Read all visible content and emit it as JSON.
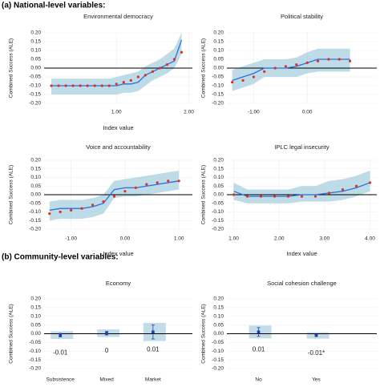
{
  "section_titles": [
    "(a) National-level variables:",
    "(b) Community-level variables:"
  ],
  "chart_data": [
    {
      "type": "line",
      "title": "Environmental democracy",
      "xlabel": "Index value",
      "ylabel": "Combined Success (ALE)",
      "grid": true,
      "xlim": [
        0,
        2.05
      ],
      "xticks": [
        {
          "value": 1,
          "label": "1.00"
        },
        {
          "value": 2,
          "label": "2.00"
        }
      ],
      "ylim": [
        -0.2,
        0.2
      ],
      "yticks": [
        {
          "value": 0.2,
          "label": "0.20"
        },
        0.15,
        {
          "value": 0.1,
          "label": "0.10"
        },
        0.05,
        {
          "value": 0,
          "label": "0.00"
        },
        -0.05,
        {
          "value": -0.1,
          "label": "-0.10"
        },
        -0.15,
        {
          "value": -0.2,
          "label": "-0.20"
        }
      ],
      "x": [
        0.1,
        0.2,
        0.3,
        0.4,
        0.5,
        0.6,
        0.7,
        0.8,
        0.9,
        1.0,
        1.1,
        1.2,
        1.3,
        1.4,
        1.5,
        1.6,
        1.7,
        1.8,
        1.9
      ],
      "series": [
        {
          "style": "band",
          "color": "#a8cfe0",
          "values": [
            -0.06,
            -0.06,
            -0.06,
            -0.06,
            -0.06,
            -0.06,
            -0.06,
            -0.06,
            -0.06,
            -0.05,
            -0.04,
            -0.03,
            -0.02,
            0.01,
            0.03,
            0.05,
            0.08,
            0.11,
            0.2
          ],
          "low": [
            -0.15,
            -0.15,
            -0.15,
            -0.15,
            -0.15,
            -0.15,
            -0.15,
            -0.15,
            -0.15,
            -0.15,
            -0.14,
            -0.14,
            -0.13,
            -0.1,
            -0.07,
            -0.05,
            -0.03,
            0.0,
            0.08
          ]
        },
        {
          "style": "line",
          "color": "#2f6fd6",
          "values": [
            -0.1,
            -0.1,
            -0.1,
            -0.1,
            -0.1,
            -0.1,
            -0.1,
            -0.1,
            -0.1,
            -0.1,
            -0.09,
            -0.09,
            -0.08,
            -0.04,
            -0.02,
            0.0,
            0.02,
            0.04,
            0.16
          ]
        },
        {
          "style": "points",
          "color": "#e0301e",
          "values": [
            -0.1,
            -0.1,
            -0.1,
            -0.1,
            -0.1,
            -0.1,
            -0.1,
            -0.1,
            -0.1,
            -0.09,
            -0.08,
            -0.07,
            -0.05,
            -0.04,
            -0.02,
            0.0,
            0.02,
            0.05,
            0.09
          ]
        }
      ]
    },
    {
      "type": "line",
      "title": "Political stability",
      "ylabel": "Combined Success (ALE)",
      "grid": true,
      "xlim": [
        -1.5,
        1.3
      ],
      "xticks": [
        {
          "value": -1,
          "label": "-1.00"
        },
        {
          "value": 0,
          "label": "0.00"
        }
      ],
      "ylim": [
        -0.2,
        0.2
      ],
      "yticks": [
        {
          "value": 0.2,
          "label": "0.20"
        },
        0.15,
        {
          "value": 0.1,
          "label": "0.10"
        },
        0.05,
        {
          "value": 0,
          "label": "0.00"
        },
        -0.05,
        {
          "value": -0.1,
          "label": "-0.10"
        },
        -0.15,
        {
          "value": -0.2,
          "label": "-0.20"
        }
      ],
      "x": [
        -1.4,
        -1.2,
        -1.0,
        -0.8,
        -0.6,
        -0.4,
        -0.2,
        0.0,
        0.2,
        0.4,
        0.6,
        0.8
      ],
      "series": [
        {
          "style": "band",
          "color": "#a8cfe0",
          "values": [
            -0.01,
            0.01,
            0.03,
            0.05,
            0.05,
            0.05,
            0.06,
            0.09,
            0.11,
            0.11,
            0.11,
            0.11
          ],
          "low": [
            -0.13,
            -0.11,
            -0.09,
            -0.05,
            -0.05,
            -0.05,
            -0.05,
            -0.03,
            -0.02,
            -0.02,
            -0.02,
            -0.02
          ]
        },
        {
          "style": "line",
          "color": "#2f6fd6",
          "values": [
            -0.07,
            -0.05,
            -0.03,
            0.0,
            0.0,
            0.0,
            0.01,
            0.03,
            0.05,
            0.05,
            0.05,
            0.05
          ]
        },
        {
          "style": "points",
          "color": "#e0301e",
          "values": [
            -0.08,
            -0.07,
            -0.05,
            -0.02,
            0.0,
            0.01,
            0.02,
            0.03,
            0.04,
            0.05,
            0.05,
            0.04
          ]
        }
      ]
    },
    {
      "type": "line",
      "title": "Voice and accountability",
      "xlabel": "Index value",
      "ylabel": "Combined Success (ALE)",
      "grid": true,
      "xlim": [
        -1.5,
        1.25
      ],
      "xticks": [
        {
          "value": -1,
          "label": "-1.00"
        },
        {
          "value": 0,
          "label": "0.00"
        },
        {
          "value": 1,
          "label": "1.00"
        }
      ],
      "ylim": [
        -0.2,
        0.2
      ],
      "yticks": [
        {
          "value": 0.2,
          "label": "0.20"
        },
        0.15,
        {
          "value": 0.1,
          "label": "0.10"
        },
        0.05,
        {
          "value": 0,
          "label": "0.00"
        },
        -0.05,
        {
          "value": -0.1,
          "label": "-0.10"
        },
        -0.15,
        {
          "value": -0.2,
          "label": "-0.20"
        }
      ],
      "x": [
        -1.4,
        -1.2,
        -1.0,
        -0.8,
        -0.6,
        -0.4,
        -0.2,
        0.0,
        0.2,
        0.4,
        0.6,
        0.8,
        1.0
      ],
      "series": [
        {
          "style": "band",
          "color": "#a8cfe0",
          "values": [
            -0.04,
            -0.03,
            -0.03,
            -0.03,
            -0.02,
            0.0,
            0.08,
            0.09,
            0.1,
            0.11,
            0.12,
            0.13,
            0.14
          ],
          "low": [
            -0.15,
            -0.14,
            -0.14,
            -0.14,
            -0.13,
            -0.11,
            -0.02,
            -0.01,
            -0.01,
            0.0,
            0.01,
            0.02,
            0.03
          ]
        },
        {
          "style": "line",
          "color": "#2f6fd6",
          "values": [
            -0.09,
            -0.08,
            -0.08,
            -0.08,
            -0.07,
            -0.05,
            0.03,
            0.04,
            0.04,
            0.05,
            0.06,
            0.07,
            0.08
          ]
        },
        {
          "style": "points",
          "color": "#e0301e",
          "values": [
            -0.11,
            -0.1,
            -0.09,
            -0.08,
            -0.06,
            -0.04,
            -0.01,
            0.02,
            0.04,
            0.06,
            0.07,
            0.08,
            0.08
          ]
        }
      ]
    },
    {
      "type": "line",
      "title": "IPLC legal insecurity",
      "xlabel": "Index value",
      "ylabel": "Combined Success (ALE)",
      "grid": true,
      "xlim": [
        0.85,
        4.15
      ],
      "xticks": [
        {
          "value": 1,
          "label": "1.00"
        },
        {
          "value": 2,
          "label": "2.00"
        },
        {
          "value": 3,
          "label": "3.00"
        },
        {
          "value": 4,
          "label": "4.00"
        }
      ],
      "ylim": [
        -0.2,
        0.2
      ],
      "yticks": [
        {
          "value": 0.2,
          "label": "0.20"
        },
        0.15,
        {
          "value": 0.1,
          "label": "0.10"
        },
        0.05,
        {
          "value": 0,
          "label": "0.00"
        },
        -0.05,
        {
          "value": -0.1,
          "label": "-0.10"
        },
        -0.15,
        {
          "value": -0.2,
          "label": "-0.20"
        }
      ],
      "x": [
        1.0,
        1.3,
        1.6,
        1.9,
        2.2,
        2.5,
        2.8,
        3.1,
        3.4,
        3.7,
        4.0
      ],
      "series": [
        {
          "style": "band",
          "color": "#a8cfe0",
          "values": [
            0.07,
            0.03,
            0.03,
            0.03,
            0.03,
            0.05,
            0.05,
            0.08,
            0.09,
            0.11,
            0.14
          ],
          "low": [
            -0.03,
            -0.05,
            -0.05,
            -0.05,
            -0.05,
            -0.04,
            -0.04,
            -0.04,
            -0.03,
            -0.01,
            0.02
          ]
        },
        {
          "style": "line",
          "color": "#2f6fd6",
          "values": [
            0.02,
            -0.01,
            -0.01,
            -0.01,
            -0.01,
            0.0,
            0.0,
            0.01,
            0.02,
            0.04,
            0.07
          ]
        },
        {
          "style": "points",
          "color": "#e0301e",
          "values": [
            0.0,
            -0.01,
            -0.01,
            -0.01,
            -0.01,
            -0.01,
            -0.01,
            0.01,
            0.03,
            0.05,
            0.07
          ]
        }
      ]
    },
    {
      "type": "errorbar",
      "title": "Economy",
      "ylabel": "Combined Success (ALE)",
      "grid": true,
      "color": "#1a3faa",
      "ylim": [
        -0.2,
        0.2
      ],
      "yticks": [
        {
          "value": 0.2,
          "label": "0.20"
        },
        0.15,
        {
          "value": 0.1,
          "label": "0.10"
        },
        0.05,
        {
          "value": 0,
          "label": "0.00"
        },
        -0.05,
        {
          "value": -0.1,
          "label": "-0.10"
        },
        -0.15,
        {
          "value": -0.2,
          "label": "-0.20"
        }
      ],
      "categories": [
        "Subsistence",
        "Mixed",
        "Market"
      ],
      "values": [
        -0.008,
        0.003,
        0.01
      ],
      "errors": [
        0.01,
        0.01,
        0.04
      ],
      "value_labels": [
        "-0.01",
        "0",
        "0.01"
      ]
    },
    {
      "type": "errorbar",
      "title": "Social cohesion challenge",
      "ylabel": "Combined Success (ALE)",
      "grid": true,
      "color": "#1a3faa",
      "ylim": [
        -0.2,
        0.2
      ],
      "yticks": [
        {
          "value": 0.2,
          "label": "0.20"
        },
        0.15,
        {
          "value": 0.1,
          "label": "0.10"
        },
        0.05,
        {
          "value": 0,
          "label": "0.00"
        },
        -0.05,
        {
          "value": -0.1,
          "label": "-0.10"
        },
        -0.15,
        {
          "value": -0.2,
          "label": "-0.20"
        }
      ],
      "categories": [
        "No",
        "Yes"
      ],
      "values": [
        0.01,
        -0.01
      ],
      "errors": [
        0.025,
        0.006
      ],
      "value_labels": [
        "0.01",
        "-0.01*"
      ]
    }
  ]
}
